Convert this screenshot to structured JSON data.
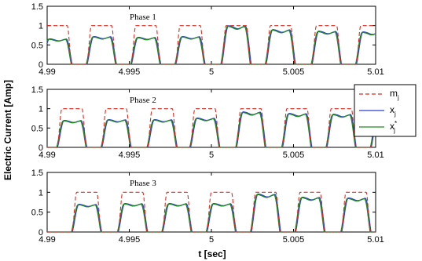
{
  "chart_data": {
    "type": "line",
    "ylabel": "Electric Current [Amp]",
    "xlabel": "t [sec]",
    "xlim": [
      4.99,
      5.01
    ],
    "ylim": [
      0,
      1.5
    ],
    "x_ticks": [
      "4.99",
      "4.995",
      "5",
      "5.005",
      "5.01"
    ],
    "y_ticks": [
      "0",
      "0.5",
      "1",
      "1.5"
    ],
    "colors": {
      "m": "#e8261e",
      "x": "#2b3fd6",
      "xstar": "#1f8a1f"
    },
    "legend": [
      {
        "key": "m",
        "label": "m",
        "sub": "j",
        "sup": "",
        "style": "dashed"
      },
      {
        "key": "x",
        "label": "x",
        "sub": "j",
        "sup": "",
        "style": "solid"
      },
      {
        "key": "xstar",
        "label": "x",
        "sub": "j",
        "sup": "*",
        "style": "solid"
      }
    ],
    "panels": [
      {
        "title": "Phase 1",
        "pulse_starts": [
          4.9897,
          4.9924,
          4.9951,
          4.9978,
          5.0006,
          5.0033,
          5.0061,
          5.0088
        ],
        "pulse_peaks": [
          0.66,
          0.72,
          0.7,
          0.72,
          1.0,
          0.9,
          0.86,
          0.84
        ]
      },
      {
        "title": "Phase 2",
        "pulse_starts": [
          4.9906,
          4.9933,
          4.9961,
          4.9987,
          5.0015,
          5.0043,
          5.007,
          5.0097
        ],
        "pulse_peaks": [
          0.7,
          0.72,
          0.72,
          0.76,
          0.92,
          0.88,
          0.86,
          0.84
        ]
      },
      {
        "title": "Phase 3",
        "pulse_starts": [
          4.9915,
          4.9943,
          4.997,
          4.9997,
          5.0024,
          5.0051,
          5.0079
        ],
        "pulse_peaks": [
          0.7,
          0.72,
          0.72,
          0.72,
          0.96,
          0.88,
          0.86
        ]
      }
    ]
  }
}
